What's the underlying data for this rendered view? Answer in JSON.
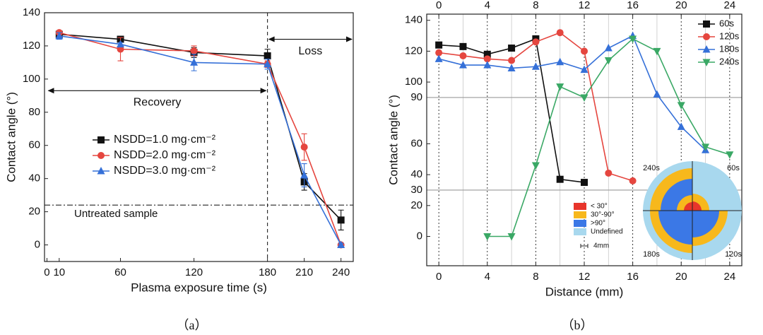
{
  "chart_data": [
    {
      "type": "line",
      "caption": "（a）",
      "x_label": "Plasma exposure time (s)",
      "y_label": "Contact angle (°)",
      "x": [
        10,
        60,
        120,
        180,
        210,
        240
      ],
      "xlim": [
        -2,
        250
      ],
      "xticks": [
        0,
        10,
        60,
        120,
        180,
        210,
        240
      ],
      "ylim": [
        -10,
        140
      ],
      "yticks": [
        0,
        20,
        40,
        60,
        80,
        100,
        120,
        140
      ],
      "legend": "center-left",
      "series": [
        {
          "name": "NSDD=1.0 mg·cm⁻²",
          "color": "#111111",
          "marker": "square",
          "values": [
            127,
            124,
            116,
            114,
            38,
            15
          ],
          "errors": [
            2,
            1,
            3,
            4,
            5,
            6
          ]
        },
        {
          "name": "NSDD=2.0 mg·cm⁻²",
          "color": "#e5463f",
          "marker": "circle",
          "values": [
            128,
            118,
            117,
            109,
            59,
            0
          ],
          "errors": [
            1,
            7,
            3,
            2,
            8,
            1
          ]
        },
        {
          "name": "NSDD=3.0 mg·cm⁻²",
          "color": "#3570d8",
          "marker": "triangle-up",
          "values": [
            126,
            121,
            110,
            109,
            42,
            0
          ],
          "errors": [
            2,
            1,
            5,
            3,
            7,
            1
          ]
        }
      ],
      "reference_lines": [
        {
          "axis": "x",
          "value": 180,
          "style": "dashed"
        },
        {
          "axis": "y",
          "value": 24,
          "style": "dashdot",
          "label": "Untreated sample"
        }
      ],
      "annotations": [
        {
          "text": "Recovery",
          "from": 0,
          "to": 180,
          "y": 93
        },
        {
          "text": "Loss",
          "from": 180,
          "to": 250,
          "y": 124
        }
      ]
    },
    {
      "type": "line",
      "caption": "（b）",
      "x_label": "Distance (mm)",
      "y_label": "Contact angle (°)",
      "xlim": [
        -1,
        25
      ],
      "xticks": [
        0,
        4,
        8,
        12,
        16,
        20,
        24
      ],
      "minor_xticks": [
        2,
        6,
        10,
        14,
        18,
        22
      ],
      "top_axis": true,
      "xgrid": true,
      "ylim": [
        -19,
        144
      ],
      "yticks": [
        0,
        20,
        30,
        40,
        60,
        90,
        100,
        120,
        140
      ],
      "legend": "upper-right",
      "series": [
        {
          "name": "60s",
          "color": "#111111",
          "marker": "square",
          "x": [
            0,
            2,
            4,
            6,
            8,
            10,
            12
          ],
          "values": [
            124,
            123,
            118,
            122,
            128,
            37,
            35
          ]
        },
        {
          "name": "120s",
          "color": "#e5463f",
          "marker": "circle",
          "x": [
            0,
            2,
            4,
            6,
            8,
            10,
            12,
            14,
            16
          ],
          "values": [
            119,
            117,
            115,
            114,
            126,
            132,
            120,
            41,
            36
          ]
        },
        {
          "name": "180s",
          "color": "#3570d8",
          "marker": "triangle-up",
          "x": [
            0,
            2,
            4,
            6,
            8,
            10,
            12,
            14,
            16,
            18,
            20,
            22
          ],
          "values": [
            115,
            111,
            111,
            109,
            110,
            113,
            108,
            122,
            130,
            92,
            71,
            56
          ]
        },
        {
          "name": "240s",
          "color": "#3aa865",
          "marker": "triangle-down",
          "x": [
            4,
            6,
            8,
            10,
            12,
            14,
            16,
            18,
            20,
            22,
            24
          ],
          "values": [
            0,
            0,
            46,
            97,
            90,
            114,
            128,
            120,
            85,
            58,
            53
          ]
        }
      ],
      "reference_lines": [
        {
          "axis": "y",
          "value": 90,
          "style": "solid"
        },
        {
          "axis": "y",
          "value": 30,
          "style": "solid"
        }
      ],
      "inset": {
        "legend": [
          {
            "label": "< 30°",
            "color": "#e8352b"
          },
          {
            "label": "30°-90°",
            "color": "#f7b81c"
          },
          {
            "label": ">90°",
            "color": "#3b78e6"
          },
          {
            "label": "Undefined",
            "color": "#a8d8ee"
          }
        ],
        "scale_label": "4mm",
        "quadrant_labels": [
          "240s",
          "60s",
          "180s",
          "120s"
        ]
      }
    }
  ]
}
